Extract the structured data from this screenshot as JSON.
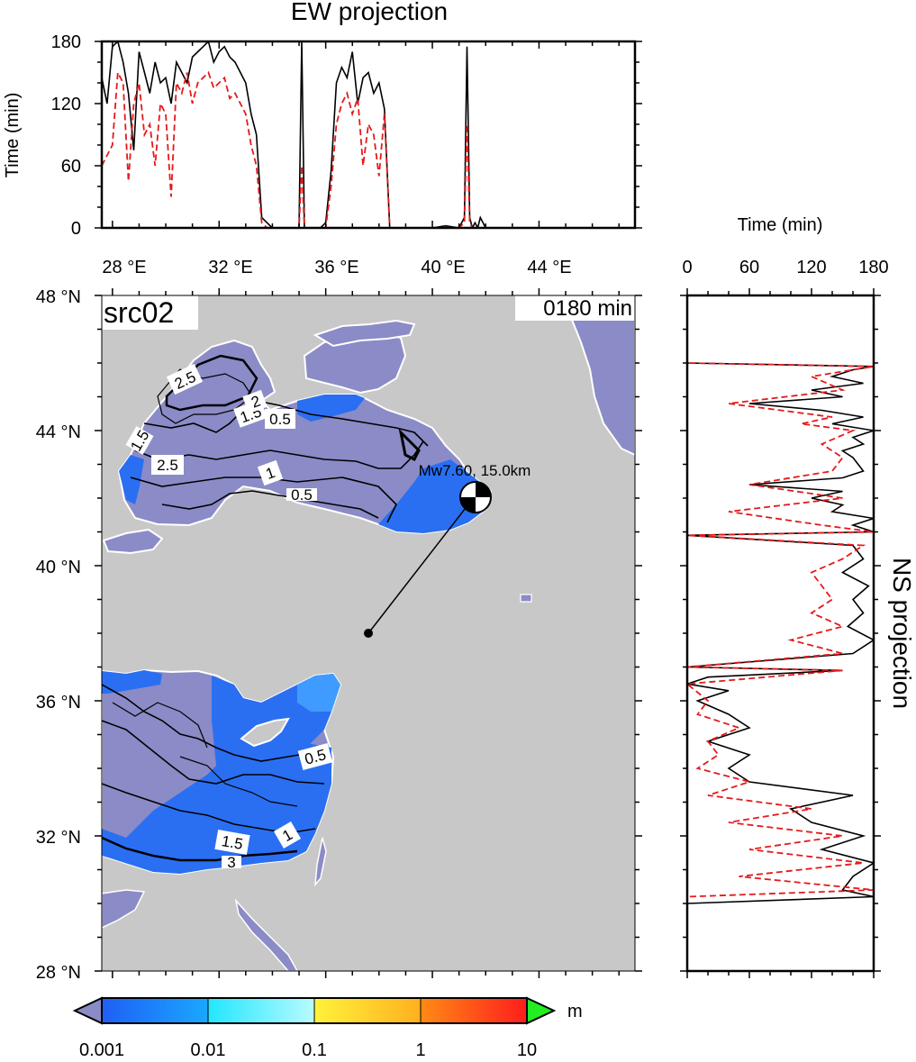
{
  "ew_panel": {
    "title": "EW projection",
    "ylabel": "Time (min)",
    "y_ticks": [
      "0",
      "60",
      "120",
      "180"
    ],
    "x_ticks": [
      "28 °E",
      "32 °E",
      "36 °E",
      "40 °E",
      "44 °E"
    ]
  },
  "ns_panel": {
    "title": "NS projection",
    "xlabel": "Time (min)",
    "x_ticks": [
      "0",
      "60",
      "120",
      "180"
    ]
  },
  "map": {
    "label": "src02",
    "time_stamp": "0180 min",
    "lat_ticks": [
      "48 °N",
      "44 °N",
      "40 °N",
      "36 °N",
      "32 °N",
      "28 °N"
    ],
    "source_label": "Mw7.60, 15.0km",
    "contour_labels": [
      "2.5",
      "1.5",
      "2",
      "0.5",
      "1.5",
      "2.5",
      "1",
      "0.5",
      "0.5",
      "1.5",
      "1",
      "3"
    ],
    "colors": {
      "land": "#c8c8c8",
      "low_water": "#8b8bc7",
      "water_blue": "#2a6ff2",
      "water_lightblue": "#3f9bff"
    }
  },
  "colorbar": {
    "unit": "m",
    "tick_labels": [
      "0.001",
      "0.01",
      "0.1",
      "1",
      "10"
    ],
    "colors": [
      "#8b8bc7",
      "#1f5ff5",
      "#22e6ff",
      "#fff23a",
      "#ffae1f",
      "#ff1d1d",
      "#22ee22"
    ]
  },
  "chart_data": [
    {
      "type": "line",
      "title": "EW projection",
      "ylabel": "Time (min)",
      "xlim": [
        27.6,
        47.5
      ],
      "ylim": [
        0,
        180
      ],
      "series": [
        {
          "color": "#000000",
          "style": "solid",
          "x": [
            27.6,
            27.8,
            28.0,
            28.2,
            28.4,
            28.6,
            28.8,
            29.0,
            29.2,
            29.4,
            29.6,
            29.8,
            30.0,
            30.2,
            30.4,
            30.6,
            30.8,
            31.0,
            31.2,
            31.4,
            31.6,
            31.8,
            32.0,
            32.2,
            32.4,
            32.6,
            32.8,
            33.0,
            33.2,
            33.4,
            33.6,
            33.8,
            34.0,
            34.4,
            34.8,
            35.0,
            35.1,
            35.2,
            35.4,
            35.8,
            36.0,
            36.2,
            36.4,
            36.6,
            36.8,
            37.0,
            37.2,
            37.4,
            37.6,
            37.8,
            38.0,
            38.2,
            38.4,
            38.6,
            39.0,
            39.5,
            40.0,
            40.5,
            41.0,
            41.2,
            41.3,
            41.4,
            41.5,
            41.6,
            41.7,
            41.8,
            42.0,
            44.0,
            47.5
          ],
          "y": [
            145,
            120,
            175,
            180,
            160,
            130,
            75,
            170,
            150,
            130,
            160,
            140,
            145,
            120,
            160,
            150,
            140,
            165,
            170,
            175,
            180,
            160,
            170,
            175,
            165,
            160,
            150,
            140,
            110,
            90,
            10,
            5,
            0,
            0,
            0,
            0,
            180,
            0,
            0,
            0,
            5,
            55,
            140,
            155,
            145,
            170,
            120,
            145,
            150,
            130,
            140,
            115,
            0,
            0,
            0,
            0,
            0,
            2,
            0,
            10,
            175,
            10,
            0,
            5,
            0,
            10,
            0,
            0,
            0
          ]
        },
        {
          "color": "#e41a1c",
          "style": "dashed",
          "x": [
            27.6,
            27.8,
            28.0,
            28.2,
            28.4,
            28.6,
            28.8,
            29.0,
            29.2,
            29.4,
            29.6,
            29.8,
            30.0,
            30.2,
            30.4,
            30.6,
            30.8,
            31.0,
            31.2,
            31.4,
            31.6,
            31.8,
            32.0,
            32.2,
            32.4,
            32.6,
            32.8,
            33.0,
            33.2,
            33.4,
            33.6,
            33.8,
            34.0,
            34.8,
            35.0,
            35.1,
            35.2,
            35.4,
            35.8,
            36.0,
            36.2,
            36.4,
            36.6,
            36.8,
            37.0,
            37.2,
            37.4,
            37.6,
            37.8,
            38.0,
            38.2,
            38.4,
            39.0,
            40.0,
            41.0,
            41.2,
            41.3,
            41.4,
            41.5,
            41.7,
            42.0,
            47.5
          ],
          "y": [
            60,
            70,
            80,
            150,
            140,
            45,
            120,
            140,
            90,
            100,
            60,
            120,
            110,
            30,
            140,
            130,
            150,
            120,
            140,
            145,
            150,
            135,
            140,
            145,
            125,
            130,
            120,
            110,
            80,
            60,
            5,
            0,
            0,
            0,
            0,
            60,
            0,
            0,
            0,
            0,
            40,
            100,
            120,
            130,
            110,
            125,
            60,
            100,
            90,
            50,
            110,
            0,
            0,
            0,
            0,
            5,
            100,
            5,
            0,
            0,
            0,
            0
          ]
        }
      ]
    },
    {
      "type": "line",
      "title": "NS projection",
      "xlabel": "Time (min)",
      "xlim": [
        0,
        180
      ],
      "ylim": [
        28,
        48
      ],
      "series": [
        {
          "color": "#000000",
          "style": "solid",
          "y": [
            48.0,
            46.0,
            45.9,
            45.8,
            45.6,
            45.4,
            45.2,
            45.0,
            44.8,
            44.6,
            44.4,
            44.2,
            44.0,
            43.8,
            43.6,
            43.4,
            43.2,
            43.0,
            42.8,
            42.6,
            42.4,
            42.2,
            42.0,
            41.8,
            41.6,
            41.4,
            41.2,
            41.0,
            40.9,
            40.6,
            40.2,
            39.8,
            39.4,
            39.0,
            38.6,
            38.2,
            37.8,
            37.4,
            37.0,
            36.9,
            36.7,
            36.5,
            36.3,
            36.0,
            35.6,
            35.2,
            34.8,
            34.4,
            34.0,
            33.6,
            33.2,
            32.8,
            32.4,
            32.0,
            31.6,
            31.2,
            30.8,
            30.4,
            30.2,
            30.0,
            28.0
          ],
          "x": [
            0,
            0,
            180,
            160,
            140,
            170,
            120,
            150,
            60,
            130,
            170,
            140,
            180,
            160,
            170,
            150,
            160,
            165,
            170,
            150,
            60,
            150,
            120,
            150,
            140,
            180,
            160,
            180,
            0,
            160,
            170,
            150,
            175,
            160,
            170,
            155,
            180,
            160,
            0,
            150,
            20,
            0,
            40,
            10,
            40,
            60,
            20,
            60,
            40,
            60,
            160,
            100,
            120,
            170,
            130,
            180,
            160,
            150,
            180,
            0,
            0
          ]
        },
        {
          "color": "#e41a1c",
          "style": "dashed",
          "y": [
            48.0,
            46.0,
            45.9,
            45.6,
            45.2,
            44.8,
            44.4,
            44.2,
            44.0,
            43.6,
            43.2,
            42.8,
            42.4,
            42.0,
            41.6,
            41.2,
            41.0,
            40.9,
            40.6,
            40.2,
            39.8,
            39.4,
            39.0,
            38.6,
            38.2,
            37.8,
            37.4,
            37.0,
            36.9,
            36.5,
            36.0,
            35.6,
            35.2,
            34.8,
            34.4,
            34.0,
            33.6,
            33.2,
            32.8,
            32.4,
            32.0,
            31.6,
            31.2,
            30.8,
            30.4,
            30.2,
            30.0,
            28.0
          ],
          "x": [
            0,
            0,
            180,
            120,
            150,
            40,
            140,
            110,
            160,
            130,
            150,
            140,
            60,
            150,
            40,
            130,
            180,
            0,
            170,
            150,
            120,
            130,
            140,
            120,
            150,
            100,
            150,
            0,
            150,
            0,
            20,
            10,
            50,
            20,
            30,
            10,
            60,
            20,
            120,
            40,
            150,
            60,
            170,
            50,
            180,
            0,
            0,
            0
          ]
        }
      ]
    }
  ]
}
